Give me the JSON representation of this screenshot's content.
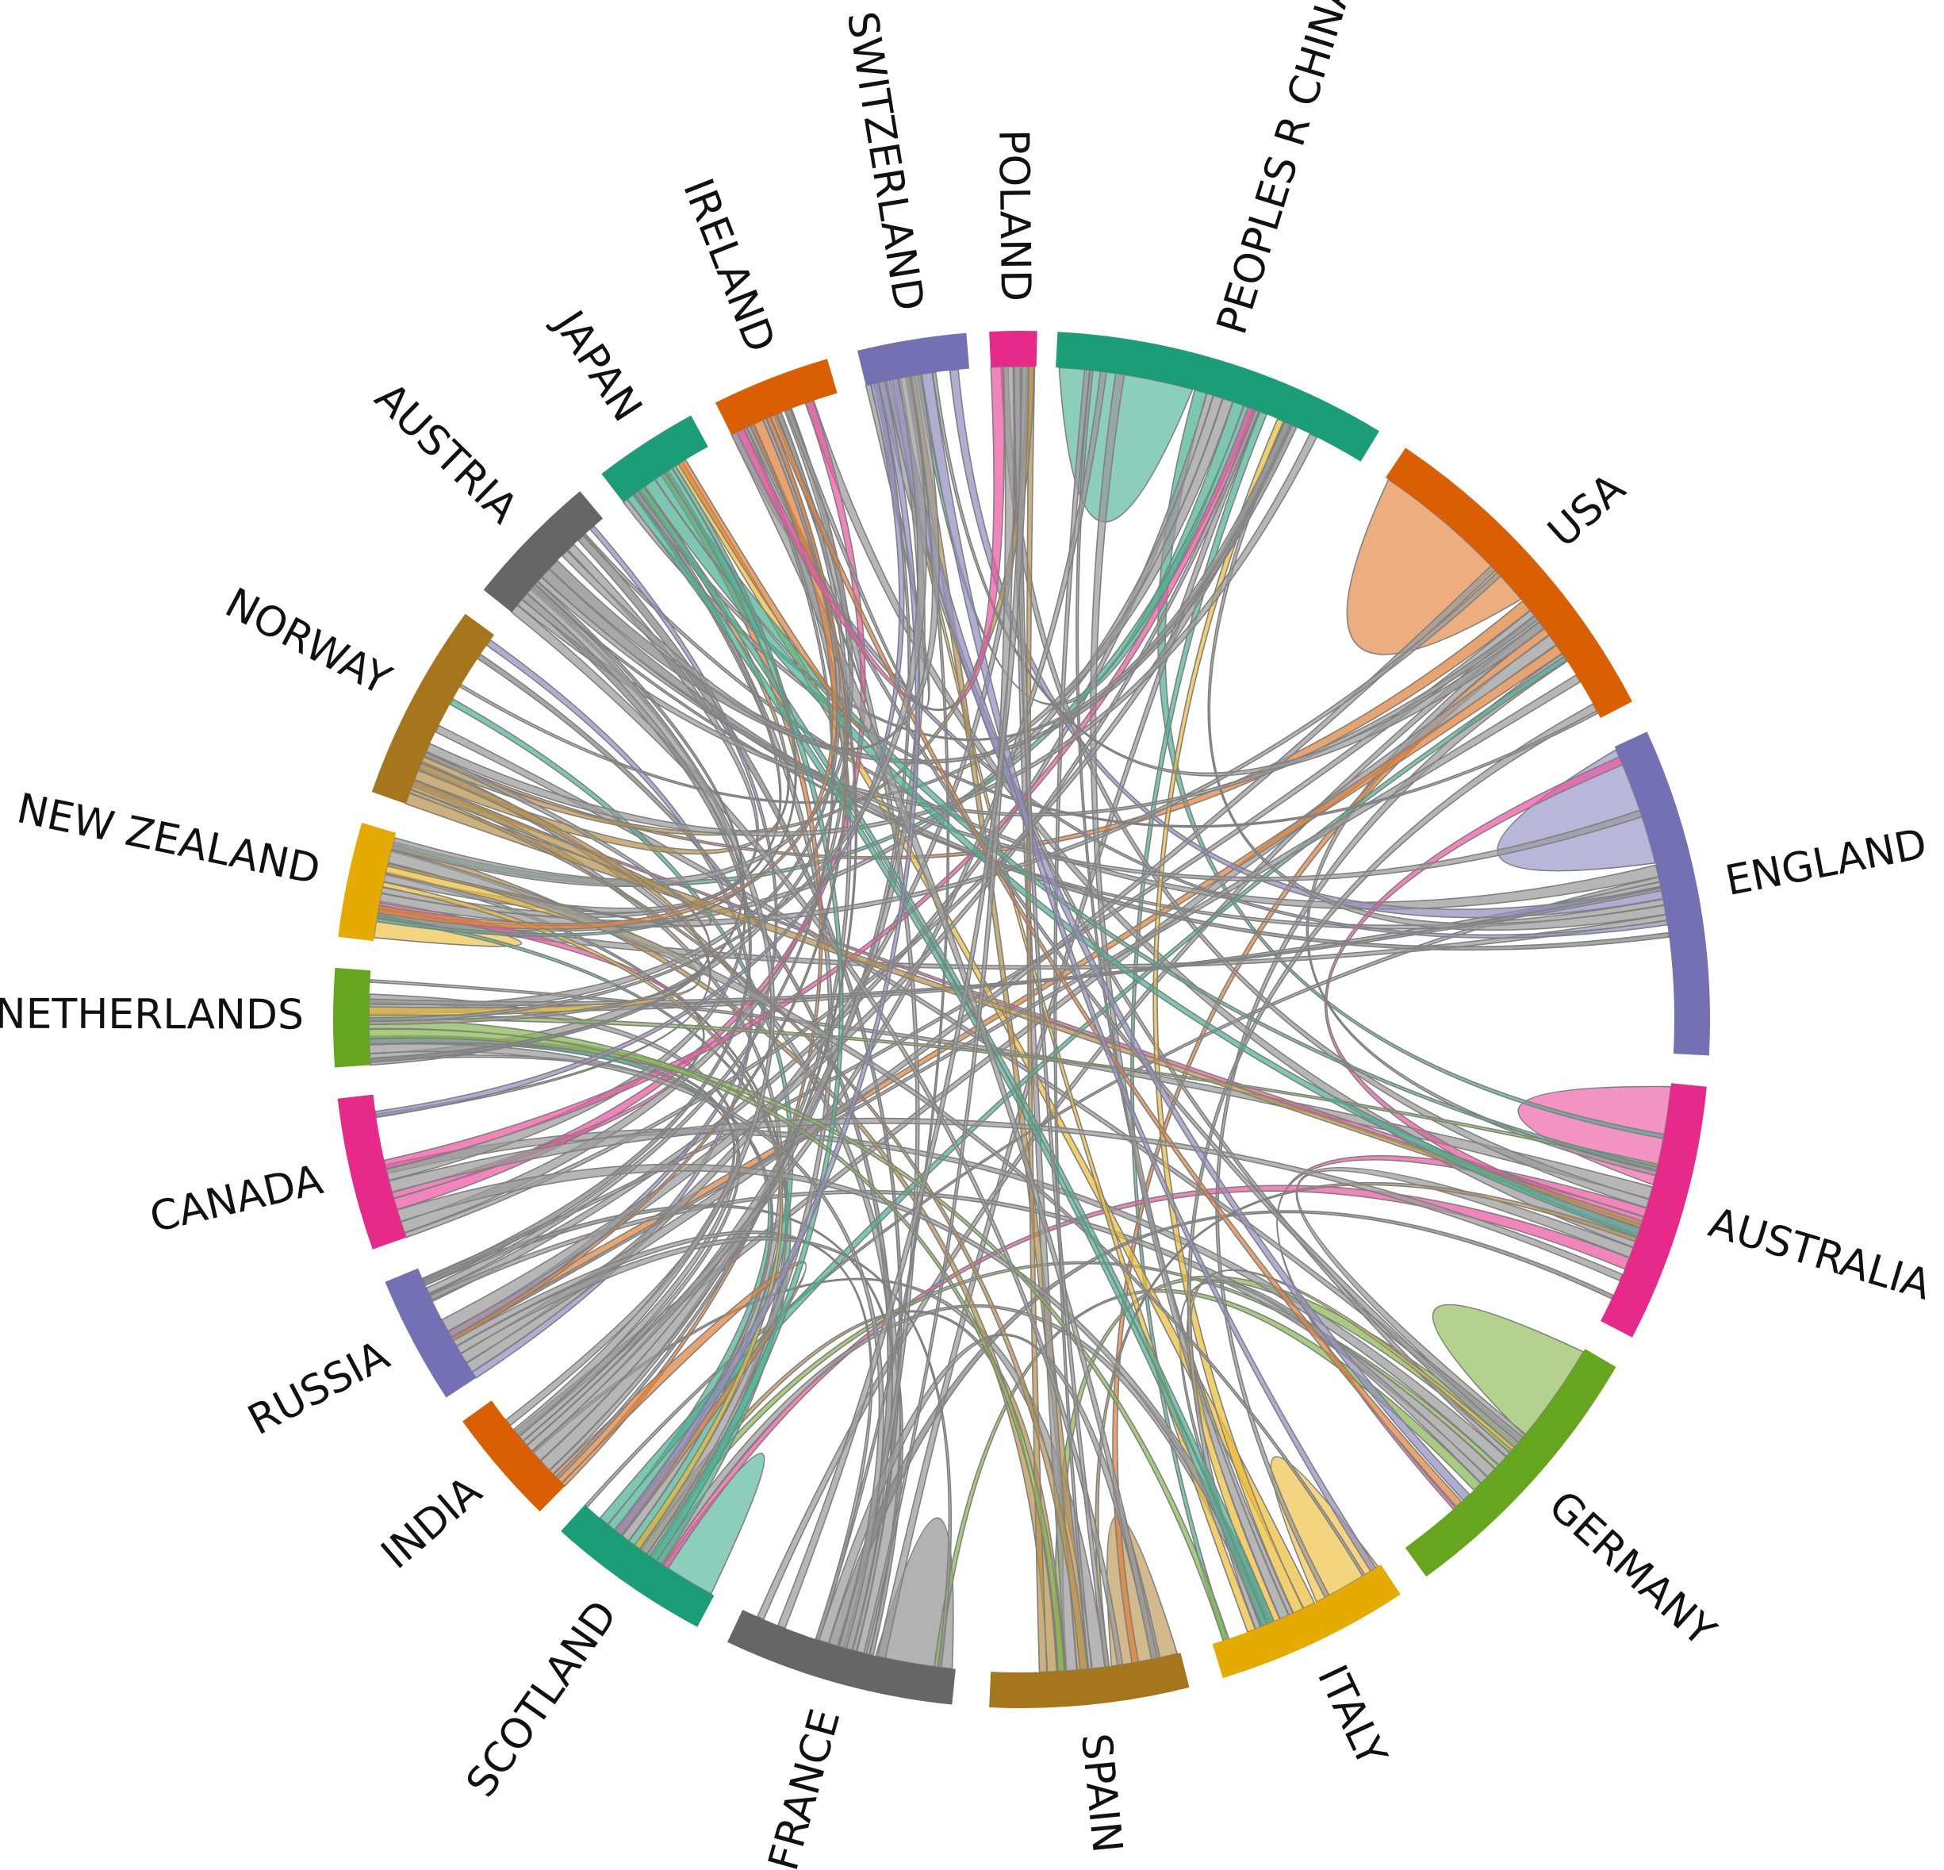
{
  "diagram": {
    "type": "chord",
    "groups": [
      {
        "name": "PEOPLES R CHINA",
        "color": "#1b9e77"
      },
      {
        "name": "USA",
        "color": "#d95f02"
      },
      {
        "name": "ENGLAND",
        "color": "#7570b3"
      },
      {
        "name": "AUSTRALIA",
        "color": "#e7298a"
      },
      {
        "name": "GERMANY",
        "color": "#66a61e"
      },
      {
        "name": "ITALY",
        "color": "#e6ab02"
      },
      {
        "name": "SPAIN",
        "color": "#a6761d"
      },
      {
        "name": "FRANCE",
        "color": "#666666"
      },
      {
        "name": "SCOTLAND",
        "color": "#1b9e77"
      },
      {
        "name": "INDIA",
        "color": "#d95f02"
      },
      {
        "name": "RUSSIA",
        "color": "#7570b3"
      },
      {
        "name": "CANADA",
        "color": "#e7298a"
      },
      {
        "name": "NETHERLANDS",
        "color": "#66a61e"
      },
      {
        "name": "NEW ZEALAND",
        "color": "#e6ab02"
      },
      {
        "name": "NORWAY",
        "color": "#a6761d"
      },
      {
        "name": "AUSTRIA",
        "color": "#666666"
      },
      {
        "name": "JAPAN",
        "color": "#1b9e77"
      },
      {
        "name": "IRELAND",
        "color": "#d95f02"
      },
      {
        "name": "SWITZERLAND",
        "color": "#7570b3"
      },
      {
        "name": "POLAND",
        "color": "#e7298a"
      }
    ]
  }
}
